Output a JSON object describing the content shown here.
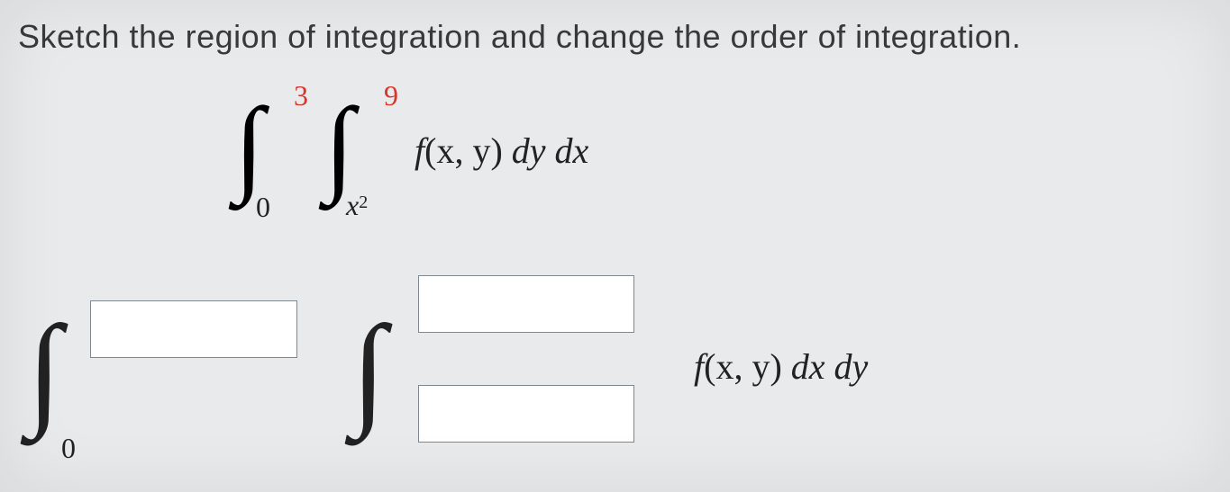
{
  "prompt": "Sketch the region of integration and change the order of integration.",
  "integral1": {
    "outer_lower": "0",
    "outer_upper": "3",
    "inner_lower_base": "x",
    "inner_lower_exp": "2",
    "inner_upper": "9",
    "integrand_fn": "f",
    "integrand_args": "(x, y)",
    "diff1": " dy",
    "diff2": " dx"
  },
  "integral2": {
    "outer_lower": "0",
    "outer_upper_input": "",
    "inner_upper_input": "",
    "inner_lower_input": "",
    "integrand_fn": "f",
    "integrand_args": "(x, y)",
    "diff1": " dx",
    "diff2": " dy"
  },
  "colors": {
    "red": "#d9362b",
    "text": "#3a3a3a",
    "bg": "#e8eaec",
    "box_border": "#7f8790",
    "box_bg": "#ffffff"
  },
  "fontsize": {
    "prompt": 36,
    "integral_symbol_large": 120,
    "integral_symbol_xlarge": 140,
    "limit": 32,
    "integrand": 40
  }
}
